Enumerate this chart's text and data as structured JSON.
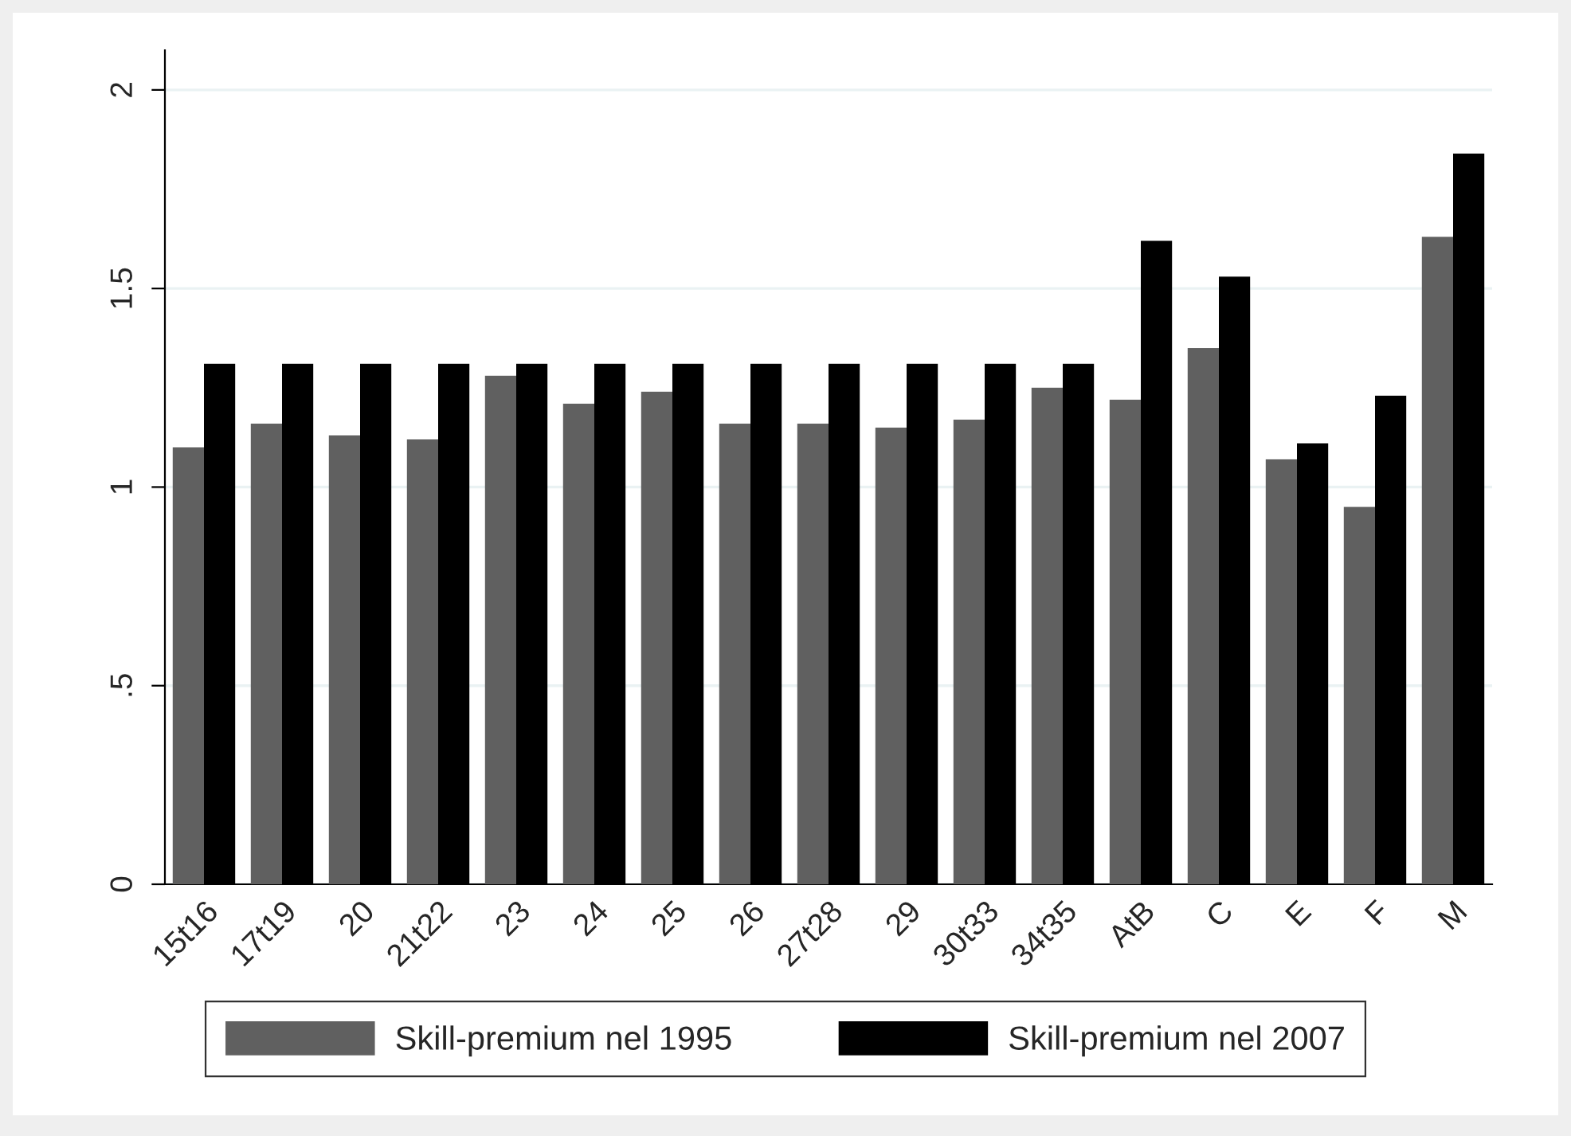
{
  "chart_data": {
    "type": "bar",
    "categories": [
      "15t16",
      "17t19",
      "20",
      "21t22",
      "23",
      "24",
      "25",
      "26",
      "27t28",
      "29",
      "30t33",
      "34t35",
      "AtB",
      "C",
      "E",
      "F",
      "M"
    ],
    "series": [
      {
        "name": "Skill-premium nel 1995",
        "color": "#606060",
        "values": [
          1.1,
          1.16,
          1.13,
          1.12,
          1.28,
          1.21,
          1.24,
          1.16,
          1.16,
          1.15,
          1.17,
          1.25,
          1.22,
          1.35,
          1.07,
          0.95,
          1.63
        ]
      },
      {
        "name": "Skill-premium nel 2007",
        "color": "#000000",
        "values": [
          1.31,
          1.31,
          1.31,
          1.31,
          1.31,
          1.31,
          1.31,
          1.31,
          1.31,
          1.31,
          1.31,
          1.31,
          1.62,
          1.53,
          1.11,
          1.23,
          1.84
        ]
      }
    ],
    "ylim": [
      0,
      2.1
    ],
    "yticks": [
      0,
      {
        "value": 0.5,
        "label": ".5"
      },
      1,
      1.5,
      2
    ],
    "grid": "y",
    "legend": "bottom"
  }
}
